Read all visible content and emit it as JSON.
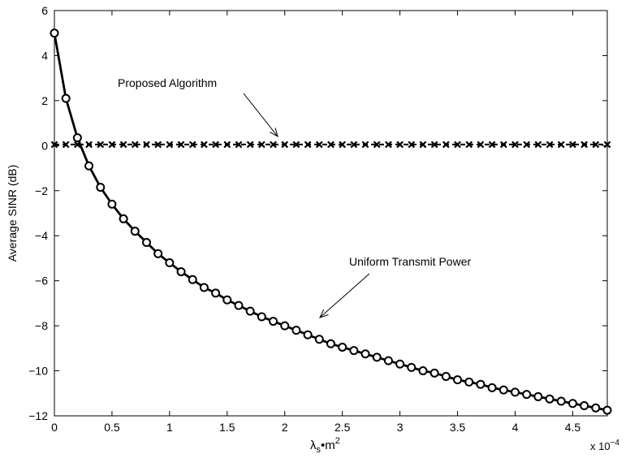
{
  "chart_data": {
    "type": "line",
    "xlabel": "λs•m²",
    "xlabel_parts": {
      "base": "λ",
      "sub": "s",
      "mid": "•m",
      "sup": "2"
    },
    "ylabel": "Average SINR (dB)",
    "x_multiplier": {
      "prefix": "x 10",
      "exponent": "−4"
    },
    "xlim": [
      0,
      4.8
    ],
    "ylim": [
      -12,
      6
    ],
    "xticks": [
      0,
      0.5,
      1,
      1.5,
      2,
      2.5,
      3,
      3.5,
      4,
      4.5
    ],
    "xtick_labels": [
      "0",
      "0.5",
      "1",
      "1.5",
      "2",
      "2.5",
      "3",
      "3.5",
      "4",
      "4.5"
    ],
    "yticks": [
      -12,
      -10,
      -8,
      -6,
      -4,
      -2,
      0,
      2,
      4,
      6
    ],
    "ytick_labels": [
      "−12",
      "−10",
      "−8",
      "−6",
      "−4",
      "−2",
      "0",
      "2",
      "4",
      "6"
    ],
    "grid": false,
    "series": [
      {
        "name": "Proposed Algorithm",
        "marker": "x",
        "line": "dashed",
        "color": "#000000",
        "x": [
          0,
          0.1,
          0.2,
          0.3,
          0.4,
          0.5,
          0.6,
          0.7,
          0.8,
          0.9,
          1,
          1.1,
          1.2,
          1.3,
          1.4,
          1.5,
          1.6,
          1.7,
          1.8,
          1.9,
          2,
          2.1,
          2.2,
          2.3,
          2.4,
          2.5,
          2.6,
          2.7,
          2.8,
          2.9,
          3,
          3.1,
          3.2,
          3.3,
          3.4,
          3.5,
          3.6,
          3.7,
          3.8,
          3.9,
          4,
          4.1,
          4.2,
          4.3,
          4.4,
          4.5,
          4.6,
          4.7,
          4.8
        ],
        "y": [
          0.05,
          0.05,
          0.05,
          0.05,
          0.05,
          0.05,
          0.05,
          0.05,
          0.05,
          0.05,
          0.05,
          0.05,
          0.05,
          0.05,
          0.05,
          0.05,
          0.05,
          0.05,
          0.05,
          0.05,
          0.05,
          0.05,
          0.05,
          0.05,
          0.05,
          0.05,
          0.05,
          0.05,
          0.05,
          0.05,
          0.05,
          0.05,
          0.05,
          0.05,
          0.05,
          0.05,
          0.05,
          0.05,
          0.05,
          0.05,
          0.05,
          0.05,
          0.05,
          0.05,
          0.05,
          0.05,
          0.05,
          0.05,
          0.05
        ]
      },
      {
        "name": "Uniform Transmit Power",
        "marker": "o",
        "line": "solid",
        "color": "#000000",
        "x": [
          0,
          0.1,
          0.2,
          0.3,
          0.4,
          0.5,
          0.6,
          0.7,
          0.8,
          0.9,
          1,
          1.1,
          1.2,
          1.3,
          1.4,
          1.5,
          1.6,
          1.7,
          1.8,
          1.9,
          2,
          2.1,
          2.2,
          2.3,
          2.4,
          2.5,
          2.6,
          2.7,
          2.8,
          2.9,
          3,
          3.1,
          3.2,
          3.3,
          3.4,
          3.5,
          3.6,
          3.7,
          3.8,
          3.9,
          4,
          4.1,
          4.2,
          4.3,
          4.4,
          4.5,
          4.6,
          4.7,
          4.8
        ],
        "y": [
          5.0,
          2.1,
          0.35,
          -0.9,
          -1.85,
          -2.6,
          -3.25,
          -3.8,
          -4.3,
          -4.8,
          -5.2,
          -5.6,
          -5.95,
          -6.3,
          -6.55,
          -6.85,
          -7.1,
          -7.35,
          -7.6,
          -7.8,
          -8.0,
          -8.2,
          -8.4,
          -8.6,
          -8.8,
          -8.95,
          -9.1,
          -9.25,
          -9.4,
          -9.55,
          -9.7,
          -9.85,
          -10.0,
          -10.1,
          -10.25,
          -10.4,
          -10.5,
          -10.6,
          -10.75,
          -10.85,
          -10.95,
          -11.05,
          -11.15,
          -11.25,
          -11.35,
          -11.45,
          -11.55,
          -11.65,
          -11.75
        ]
      }
    ],
    "annotations": [
      {
        "text": "Proposed Algorithm",
        "points_to_series": 0,
        "target": [
          1.92,
          0.05
        ]
      },
      {
        "text": "Uniform Transmit Power",
        "points_to_series": 1,
        "target": [
          2.2,
          -8.4
        ]
      }
    ]
  }
}
